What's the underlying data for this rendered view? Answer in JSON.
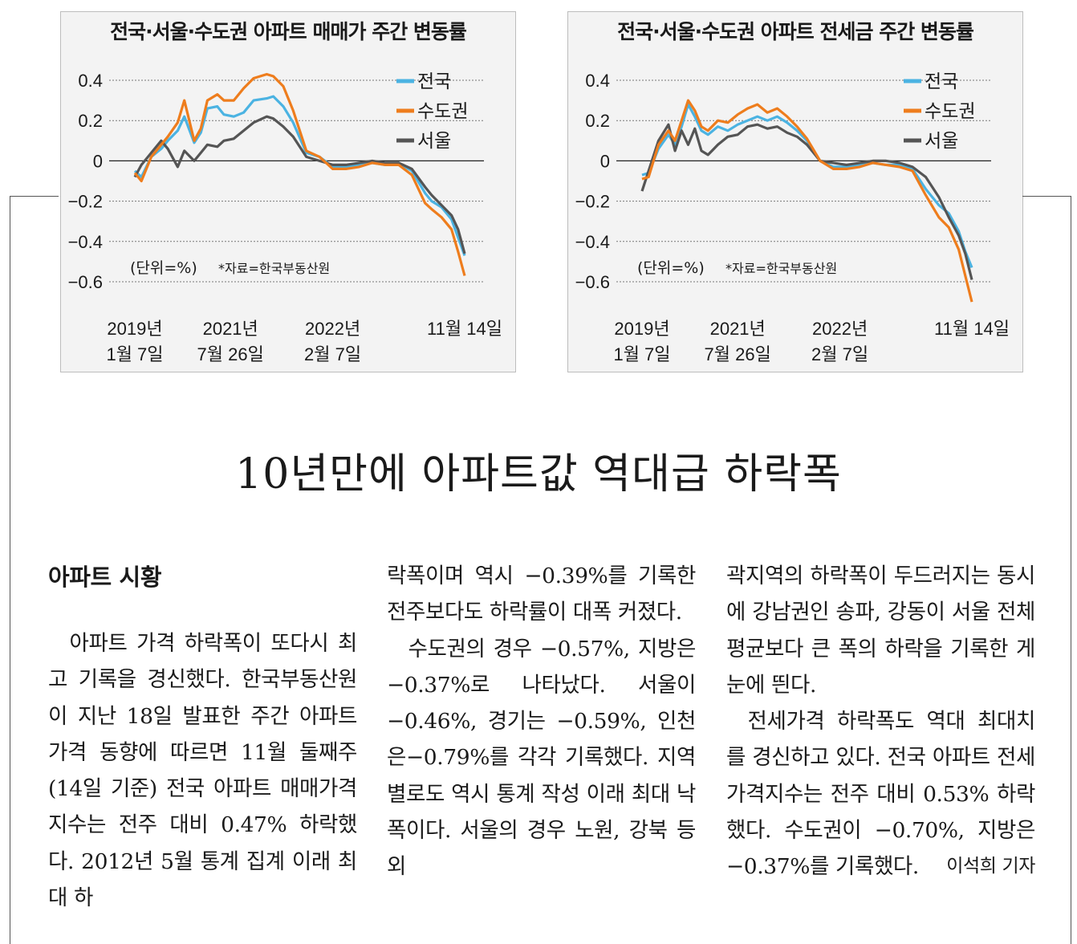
{
  "charts": [
    {
      "title": "전국·서울·수도권 아파트 매매가 주간 변동률",
      "unit_note": "(단위=%)",
      "source_note": "*자료=한국부동산원"
    },
    {
      "title": "전국·서울·수도권 아파트 전세금 주간 변동률",
      "unit_note": "(단위=%)",
      "source_note": "*자료=한국부동산원"
    }
  ],
  "chart_data": [
    {
      "type": "line",
      "title": "전국·서울·수도권 아파트 매매가 주간 변동률",
      "ylim": [
        -0.6,
        0.4
      ],
      "yticks": [
        "0.4",
        "0.2",
        "0",
        "−0.2",
        "−0.4",
        "−0.6"
      ],
      "ytick_values": [
        0.4,
        0.2,
        0,
        -0.2,
        -0.4,
        -0.6
      ],
      "xticks": [
        {
          "line1": "2019년",
          "line2": "1월 7일",
          "t": 0.0
        },
        {
          "line1": "2021년",
          "line2": "7월 26일",
          "t": 0.29
        },
        {
          "line1": "2022년",
          "line2": "2월 7일",
          "t": 0.6
        },
        {
          "line1": "11월 14일",
          "line2": "",
          "t": 1.0
        }
      ],
      "grid": true,
      "legend_position": "top-right",
      "series": [
        {
          "name": "전국",
          "color": "#4bb3e2",
          "t": [
            0,
            0.02,
            0.05,
            0.08,
            0.1,
            0.13,
            0.15,
            0.18,
            0.2,
            0.22,
            0.25,
            0.27,
            0.3,
            0.33,
            0.36,
            0.4,
            0.42,
            0.45,
            0.48,
            0.52,
            0.56,
            0.6,
            0.64,
            0.68,
            0.72,
            0.76,
            0.8,
            0.84,
            0.88,
            0.9,
            0.93,
            0.96,
            0.98,
            1.0
          ],
          "values": [
            -0.05,
            -0.08,
            0.02,
            0.06,
            0.1,
            0.15,
            0.22,
            0.09,
            0.14,
            0.26,
            0.27,
            0.23,
            0.22,
            0.24,
            0.3,
            0.31,
            0.32,
            0.27,
            0.19,
            0.04,
            0.02,
            -0.03,
            -0.03,
            -0.02,
            -0.01,
            -0.02,
            -0.01,
            -0.05,
            -0.16,
            -0.2,
            -0.23,
            -0.29,
            -0.38,
            -0.47
          ]
        },
        {
          "name": "수도권",
          "color": "#ee7d1d",
          "t": [
            0,
            0.02,
            0.05,
            0.08,
            0.1,
            0.13,
            0.15,
            0.18,
            0.2,
            0.22,
            0.25,
            0.27,
            0.3,
            0.33,
            0.36,
            0.4,
            0.42,
            0.45,
            0.48,
            0.52,
            0.56,
            0.6,
            0.64,
            0.68,
            0.72,
            0.76,
            0.8,
            0.84,
            0.88,
            0.9,
            0.93,
            0.96,
            0.98,
            1.0
          ],
          "values": [
            -0.06,
            -0.1,
            0.02,
            0.08,
            0.12,
            0.19,
            0.3,
            0.1,
            0.16,
            0.3,
            0.33,
            0.3,
            0.3,
            0.36,
            0.41,
            0.43,
            0.42,
            0.37,
            0.25,
            0.05,
            0.02,
            -0.04,
            -0.04,
            -0.03,
            -0.01,
            -0.02,
            -0.02,
            -0.07,
            -0.21,
            -0.24,
            -0.28,
            -0.34,
            -0.45,
            -0.57
          ]
        },
        {
          "name": "서울",
          "color": "#555555",
          "t": [
            0,
            0.02,
            0.05,
            0.08,
            0.1,
            0.13,
            0.15,
            0.18,
            0.2,
            0.22,
            0.25,
            0.27,
            0.3,
            0.33,
            0.36,
            0.4,
            0.42,
            0.45,
            0.48,
            0.52,
            0.56,
            0.6,
            0.64,
            0.68,
            0.72,
            0.76,
            0.8,
            0.84,
            0.88,
            0.9,
            0.93,
            0.96,
            0.98,
            1.0
          ],
          "values": [
            -0.08,
            -0.02,
            0.04,
            0.1,
            0.06,
            -0.03,
            0.05,
            0.0,
            0.04,
            0.08,
            0.07,
            0.1,
            0.11,
            0.15,
            0.19,
            0.22,
            0.21,
            0.17,
            0.12,
            0.02,
            0.0,
            -0.02,
            -0.02,
            -0.01,
            0.0,
            -0.01,
            -0.01,
            -0.04,
            -0.13,
            -0.17,
            -0.22,
            -0.27,
            -0.34,
            -0.46
          ]
        }
      ]
    },
    {
      "type": "line",
      "title": "전국·서울·수도권 아파트 전세금 주간 변동률",
      "ylim": [
        -0.6,
        0.4
      ],
      "yticks": [
        "0.4",
        "0.2",
        "0",
        "−0.2",
        "−0.4",
        "−0.6"
      ],
      "ytick_values": [
        0.4,
        0.2,
        0,
        -0.2,
        -0.4,
        -0.6
      ],
      "xticks": [
        {
          "line1": "2019년",
          "line2": "1월 7일",
          "t": 0.0
        },
        {
          "line1": "2021년",
          "line2": "7월 26일",
          "t": 0.29
        },
        {
          "line1": "2022년",
          "line2": "2월 7일",
          "t": 0.6
        },
        {
          "line1": "11월 14일",
          "line2": "",
          "t": 1.0
        }
      ],
      "grid": true,
      "legend_position": "top-right",
      "series": [
        {
          "name": "전국",
          "color": "#4bb3e2",
          "t": [
            0,
            0.02,
            0.05,
            0.08,
            0.1,
            0.12,
            0.14,
            0.16,
            0.18,
            0.2,
            0.23,
            0.26,
            0.29,
            0.32,
            0.35,
            0.38,
            0.41,
            0.44,
            0.47,
            0.5,
            0.54,
            0.58,
            0.62,
            0.66,
            0.7,
            0.74,
            0.78,
            0.82,
            0.86,
            0.9,
            0.93,
            0.96,
            0.98,
            1.0
          ],
          "values": [
            -0.07,
            -0.06,
            0.06,
            0.13,
            0.08,
            0.17,
            0.28,
            0.22,
            0.15,
            0.13,
            0.17,
            0.15,
            0.18,
            0.2,
            0.22,
            0.2,
            0.22,
            0.19,
            0.15,
            0.1,
            0.0,
            -0.03,
            -0.03,
            -0.02,
            -0.01,
            -0.02,
            -0.02,
            -0.04,
            -0.14,
            -0.22,
            -0.26,
            -0.35,
            -0.45,
            -0.53
          ]
        },
        {
          "name": "수도권",
          "color": "#ee7d1d",
          "t": [
            0,
            0.02,
            0.05,
            0.08,
            0.1,
            0.12,
            0.14,
            0.16,
            0.18,
            0.2,
            0.23,
            0.26,
            0.29,
            0.32,
            0.35,
            0.38,
            0.41,
            0.44,
            0.47,
            0.5,
            0.54,
            0.58,
            0.62,
            0.66,
            0.7,
            0.74,
            0.78,
            0.82,
            0.86,
            0.9,
            0.93,
            0.96,
            0.98,
            1.0
          ],
          "values": [
            -0.09,
            -0.08,
            0.08,
            0.15,
            0.1,
            0.2,
            0.3,
            0.25,
            0.17,
            0.15,
            0.2,
            0.19,
            0.23,
            0.26,
            0.28,
            0.24,
            0.26,
            0.22,
            0.17,
            0.11,
            0.0,
            -0.04,
            -0.04,
            -0.03,
            -0.01,
            -0.02,
            -0.03,
            -0.05,
            -0.17,
            -0.28,
            -0.33,
            -0.44,
            -0.57,
            -0.7
          ]
        },
        {
          "name": "서울",
          "color": "#555555",
          "t": [
            0,
            0.02,
            0.05,
            0.08,
            0.1,
            0.12,
            0.14,
            0.16,
            0.18,
            0.2,
            0.23,
            0.26,
            0.29,
            0.32,
            0.35,
            0.38,
            0.41,
            0.44,
            0.47,
            0.5,
            0.54,
            0.58,
            0.62,
            0.66,
            0.7,
            0.74,
            0.78,
            0.82,
            0.86,
            0.9,
            0.93,
            0.96,
            0.98,
            1.0
          ],
          "values": [
            -0.15,
            -0.05,
            0.1,
            0.18,
            0.05,
            0.15,
            0.08,
            0.16,
            0.05,
            0.03,
            0.08,
            0.12,
            0.13,
            0.17,
            0.18,
            0.16,
            0.17,
            0.14,
            0.12,
            0.08,
            0.0,
            -0.01,
            -0.02,
            -0.01,
            0.0,
            0.0,
            -0.01,
            -0.03,
            -0.08,
            -0.18,
            -0.28,
            -0.37,
            -0.46,
            -0.59
          ]
        }
      ]
    }
  ],
  "headline": "10년만에 아파트값 역대급 하락폭",
  "article": {
    "section": "아파트 시황",
    "col1_p1": "아파트 가격 하락폭이 또다시 최고 기록을 경신했다. 한국부동산원이 지난 18일 발표한 주간 아파트 가격 동향에 따르면 11월 둘째주(14일 기준) 전국 아파트 매매가격지수는 전주 대비 0.47% 하락했다. 2012년 5월 통계 집계 이래 최대 하",
    "col2_p1": "락폭이며 역시 −0.39%를 기록한 전주보다도 하락률이 대폭 커졌다.",
    "col2_p2": "수도권의 경우 −0.57%, 지방은 −0.37%로 나타났다. 서울이 −0.46%, 경기는 −0.59%, 인천은−0.79%를 각각 기록했다. 지역별로도 역시 통계 작성 이래 최대 낙폭이다. 서울의 경우 노원, 강북 등 외",
    "col3_p1": "곽지역의 하락폭이 두드러지는 동시에 강남권인 송파, 강동이 서울 전체 평균보다 큰 폭의 하락을 기록한 게 눈에 띈다.",
    "col3_p2": "전세가격 하락폭도 역대 최대치를 경신하고 있다. 전국 아파트 전세가격지수는 전주 대비 0.53% 하락했다. 수도권이 −0.70%, 지방은 −0.37%를 기록했다.",
    "byline": "이석희 기자"
  }
}
